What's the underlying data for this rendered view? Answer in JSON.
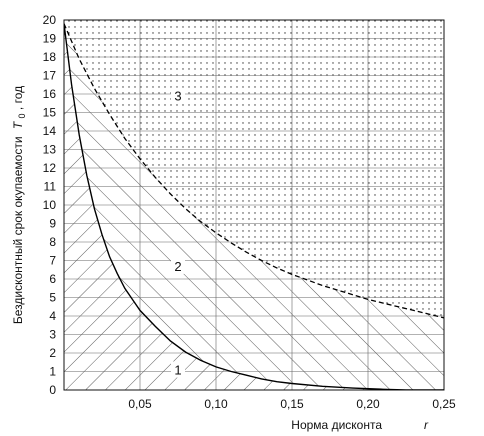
{
  "chart_data": {
    "type": "line",
    "xlabel": "Норма дисконта",
    "xlabel_symbol": "r",
    "ylabel_prefix": "Бездисконтный срок окупаемости",
    "ylabel_symbol": "T",
    "ylabel_subscript": "0",
    "ylabel_suffix": ", год",
    "xlim": [
      0,
      0.25
    ],
    "ylim": [
      0,
      20
    ],
    "x_ticks": [
      0.05,
      0.1,
      0.15,
      0.2,
      0.25
    ],
    "x_tick_labels": [
      "0,05",
      "0,10",
      "0,15",
      "0,20",
      "0,25"
    ],
    "y_ticks": [
      0,
      1,
      2,
      3,
      4,
      5,
      6,
      7,
      8,
      9,
      10,
      11,
      12,
      13,
      14,
      15,
      16,
      17,
      18,
      19,
      20
    ],
    "y_tick_labels": [
      "0",
      "1",
      "2",
      "3",
      "4",
      "5",
      "6",
      "7",
      "8",
      "9",
      "10",
      "11",
      "12",
      "13",
      "14",
      "15",
      "16",
      "17",
      "18",
      "19",
      "20"
    ],
    "grid": true,
    "series": [
      {
        "style": "solid",
        "x": [
          0.0,
          0.005,
          0.01,
          0.015,
          0.02,
          0.025,
          0.03,
          0.035,
          0.04,
          0.045,
          0.05,
          0.06,
          0.07,
          0.08,
          0.09,
          0.1,
          0.11,
          0.12,
          0.13,
          0.14,
          0.15,
          0.17,
          0.19,
          0.21,
          0.225,
          0.25
        ],
        "y": [
          19.8,
          16.5,
          13.8,
          11.6,
          9.8,
          8.4,
          7.2,
          6.3,
          5.5,
          4.9,
          4.3,
          3.45,
          2.65,
          2.05,
          1.6,
          1.25,
          1.0,
          0.8,
          0.6,
          0.45,
          0.35,
          0.2,
          0.1,
          0.04,
          0.0,
          0.0
        ]
      },
      {
        "style": "dashed",
        "x": [
          0.0,
          0.01,
          0.02,
          0.03,
          0.04,
          0.05,
          0.06,
          0.07,
          0.08,
          0.09,
          0.1,
          0.11,
          0.12,
          0.13,
          0.14,
          0.15,
          0.16,
          0.17,
          0.18,
          0.19,
          0.2,
          0.21,
          0.22,
          0.23,
          0.24,
          0.25
        ],
        "y": [
          19.8,
          17.9,
          16.3,
          14.9,
          13.6,
          12.5,
          11.5,
          10.6,
          9.8,
          9.1,
          8.5,
          7.95,
          7.45,
          7.0,
          6.6,
          6.25,
          5.95,
          5.65,
          5.4,
          5.15,
          4.9,
          4.7,
          4.5,
          4.3,
          4.1,
          3.9
        ]
      }
    ],
    "regions": [
      {
        "label": "1",
        "fill": "hatch-diagonal-left",
        "x": 0.075,
        "y": 1.0
      },
      {
        "label": "2",
        "fill": "hatch-diagonal-right",
        "x": 0.075,
        "y": 6.6
      },
      {
        "label": "3",
        "fill": "dots",
        "x": 0.075,
        "y": 15.8
      }
    ]
  }
}
